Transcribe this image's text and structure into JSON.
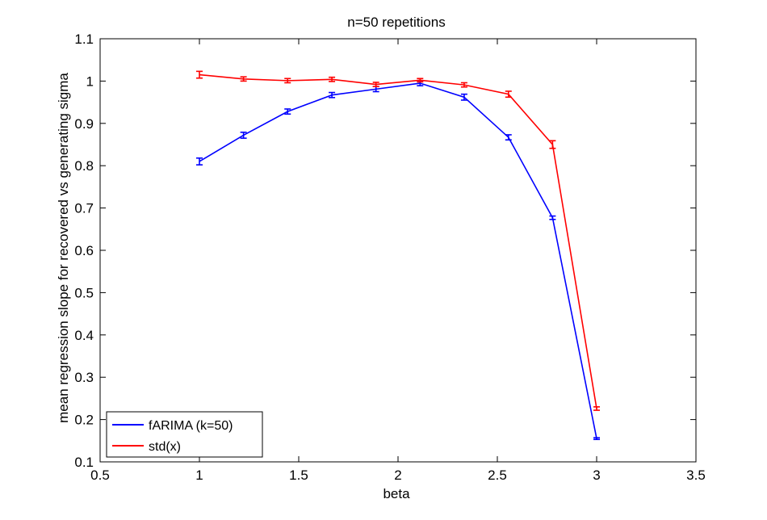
{
  "chart_data": {
    "type": "line",
    "title": "n=50 repetitions",
    "xlabel": "beta",
    "ylabel": "mean regression slope for recovered vs generating sigma",
    "xlim": [
      0.5,
      3.5
    ],
    "ylim": [
      0.1,
      1.1
    ],
    "xticks": [
      "0.5",
      "1",
      "1.5",
      "2",
      "2.5",
      "3",
      "3.5"
    ],
    "yticks": [
      "0.1",
      "0.2",
      "0.3",
      "0.4",
      "0.5",
      "0.6",
      "0.7",
      "0.8",
      "0.9",
      "1",
      "1.1"
    ],
    "grid": false,
    "legend_position": "bottom-left",
    "x": [
      1.0,
      1.222,
      1.444,
      1.667,
      1.889,
      2.111,
      2.333,
      2.556,
      2.778,
      3.0
    ],
    "series": [
      {
        "name": "fARIMA (k=50)",
        "color": "#0000ff",
        "values": [
          0.81,
          0.872,
          0.928,
          0.967,
          0.981,
          0.995,
          0.962,
          0.867,
          0.677,
          0.155
        ],
        "errors": [
          0.008,
          0.007,
          0.006,
          0.006,
          0.006,
          0.006,
          0.007,
          0.006,
          0.004,
          0.002
        ]
      },
      {
        "name": "std(x)",
        "color": "#ff0000",
        "values": [
          1.015,
          1.005,
          1.001,
          1.004,
          0.992,
          1.002,
          0.991,
          0.969,
          0.85,
          0.226
        ],
        "errors": [
          0.008,
          0.005,
          0.005,
          0.005,
          0.005,
          0.004,
          0.005,
          0.007,
          0.009,
          0.004
        ]
      }
    ]
  }
}
